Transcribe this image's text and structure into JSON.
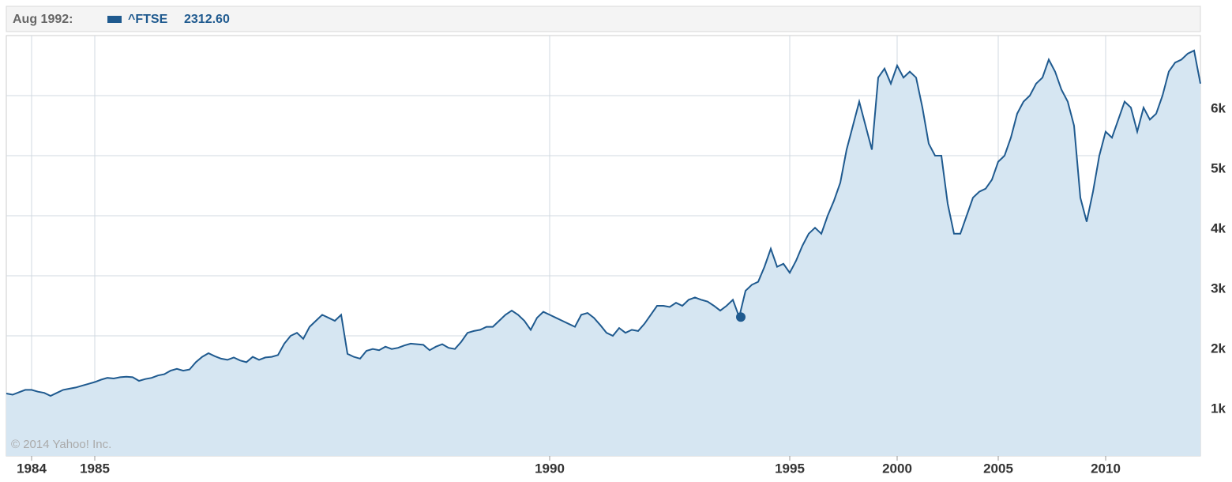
{
  "chart_data": {
    "type": "area",
    "hover": {
      "date": "Aug 1992:",
      "value": 2312.6,
      "value_label": "2312.60"
    },
    "copyright": "© 2014 Yahoo! Inc.",
    "categories": [
      null,
      null,
      null,
      null,
      "1984",
      null,
      null,
      null,
      null,
      null,
      null,
      null,
      null,
      null,
      "1985",
      null,
      null,
      null,
      null,
      null,
      null,
      null,
      null,
      null,
      null,
      null,
      null,
      null,
      null,
      null,
      null,
      null,
      null,
      null,
      null,
      null,
      null,
      null,
      null,
      null,
      null,
      null,
      null,
      null,
      null,
      null,
      null,
      null,
      null,
      null,
      null,
      null,
      null,
      null,
      null,
      null,
      null,
      null,
      null,
      null,
      null,
      null,
      null,
      null,
      null,
      null,
      null,
      null,
      null,
      null,
      null,
      null,
      null,
      null,
      null,
      null,
      null,
      null,
      null,
      null,
      null,
      null,
      null,
      null,
      null,
      null,
      "1990",
      null,
      null,
      null,
      null,
      null,
      null,
      null,
      null,
      null,
      null,
      null,
      null,
      null,
      null,
      null,
      null,
      null,
      null,
      null,
      null,
      null,
      null,
      null,
      null,
      null,
      null,
      null,
      null,
      null,
      null,
      null,
      null,
      null,
      null,
      null,
      null,
      null,
      "1995",
      null,
      null,
      null,
      null,
      null,
      null,
      null,
      null,
      null,
      null,
      null,
      null,
      null,
      null,
      null,
      null,
      "2000",
      null,
      null,
      null,
      null,
      null,
      null,
      null,
      null,
      null,
      null,
      null,
      null,
      null,
      null,
      null,
      "2005",
      null,
      null,
      null,
      null,
      null,
      null,
      null,
      null,
      null,
      null,
      null,
      null,
      null,
      null,
      null,
      null,
      "2010",
      null,
      null,
      null,
      null,
      null,
      null,
      null,
      null,
      null,
      null,
      null,
      null,
      null,
      null,
      null
    ],
    "series": [
      {
        "name": "^FTSE",
        "color": "#1f5a8f",
        "fill": "#d6e6f2",
        "values": [
          1040,
          1020,
          1060,
          1100,
          1100,
          1070,
          1050,
          1000,
          1050,
          1100,
          1120,
          1140,
          1170,
          1200,
          1230,
          1270,
          1300,
          1290,
          1310,
          1320,
          1310,
          1250,
          1280,
          1300,
          1340,
          1360,
          1420,
          1450,
          1420,
          1440,
          1560,
          1650,
          1710,
          1660,
          1620,
          1600,
          1640,
          1590,
          1560,
          1650,
          1600,
          1640,
          1650,
          1680,
          1870,
          2000,
          2050,
          1950,
          2150,
          2250,
          2350,
          2300,
          2250,
          2350,
          1700,
          1650,
          1620,
          1750,
          1780,
          1760,
          1820,
          1780,
          1800,
          1840,
          1870,
          1860,
          1850,
          1760,
          1820,
          1860,
          1800,
          1780,
          1900,
          2050,
          2080,
          2100,
          2150,
          2150,
          2250,
          2350,
          2420,
          2350,
          2250,
          2100,
          2300,
          2400,
          2350,
          2300,
          2250,
          2200,
          2150,
          2350,
          2380,
          2300,
          2180,
          2050,
          2000,
          2130,
          2050,
          2100,
          2080,
          2200,
          2350,
          2500,
          2500,
          2480,
          2550,
          2500,
          2600,
          2640,
          2600,
          2570,
          2500,
          2420,
          2500,
          2600,
          2312.6,
          2750,
          2850,
          2900,
          3150,
          3450,
          3150,
          3200,
          3050,
          3250,
          3500,
          3700,
          3800,
          3700,
          4000,
          4250,
          4550,
          5100,
          5500,
          5900,
          5500,
          5100,
          6300,
          6450,
          6200,
          6500,
          6300,
          6400,
          6300,
          5800,
          5200,
          5000,
          5000,
          4200,
          3700,
          3700,
          4000,
          4300,
          4400,
          4450,
          4600,
          4900,
          5000,
          5300,
          5700,
          5900,
          6000,
          6200,
          6300,
          6600,
          6400,
          6100,
          5900,
          5500,
          4300,
          3900,
          4400,
          5000,
          5400,
          5300,
          5600,
          5900,
          5800,
          5400,
          5800,
          5600,
          5700,
          6000,
          6400,
          6550,
          6600,
          6700,
          6750,
          6200
        ]
      }
    ],
    "ylim": [
      0,
      7000
    ],
    "yticks": [
      {
        "value": 1000,
        "label": "1k"
      },
      {
        "value": 2000,
        "label": "2k"
      },
      {
        "value": 3000,
        "label": "3k"
      },
      {
        "value": 4000,
        "label": "4k"
      },
      {
        "value": 5000,
        "label": "5k"
      },
      {
        "value": 6000,
        "label": "6k"
      }
    ],
    "grid": true
  }
}
